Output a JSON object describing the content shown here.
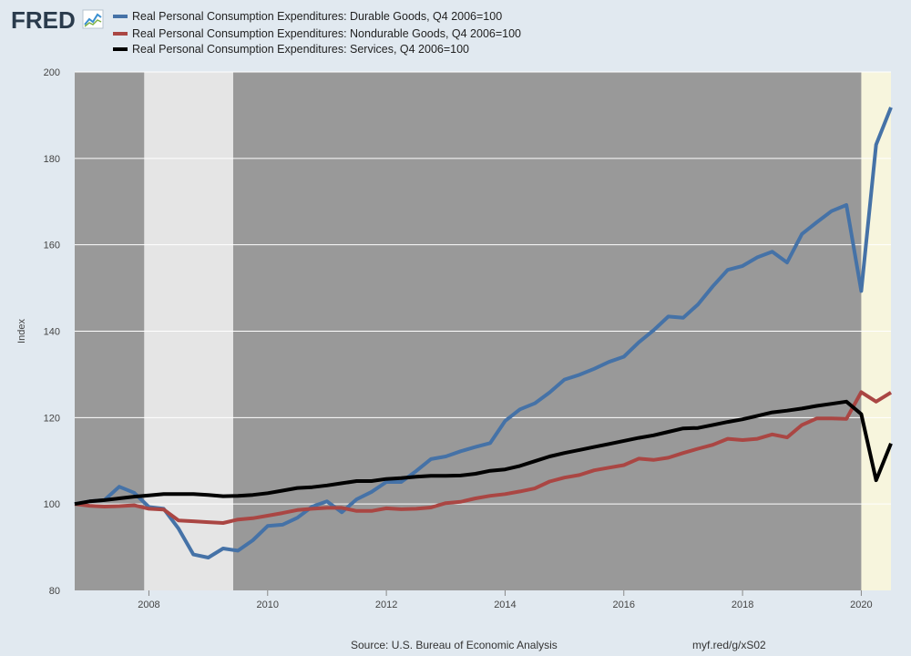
{
  "header": {
    "logo_text": "FRED",
    "logo_icon": "line-chart-icon"
  },
  "legend": [
    {
      "label": "Real Personal Consumption Expenditures: Durable Goods, Q4 2006=100",
      "color": "#4572a7"
    },
    {
      "label": "Real Personal Consumption Expenditures: Nondurable Goods, Q4 2006=100",
      "color": "#aa4643"
    },
    {
      "label": "Real Personal Consumption Expenditures: Services, Q4 2006=100",
      "color": "#000000"
    }
  ],
  "footer": {
    "source": "Source: U.S. Bureau of Economic Analysis",
    "link": "myf.red/g/xS02"
  },
  "colors": {
    "page_background": "#e1e9f0",
    "plot_background": "#999999",
    "recession_2008": "#e5e5e5",
    "recession_2020": "#f7f5dd",
    "gridline": "#ffffff"
  },
  "chart_data": {
    "type": "line",
    "ylabel": "Index",
    "xlabel": "",
    "xlim": [
      2006.75,
      2020.5
    ],
    "ylim": [
      80,
      200
    ],
    "yticks": [
      80,
      100,
      120,
      140,
      160,
      180,
      200
    ],
    "xticks": [
      2008,
      2010,
      2012,
      2014,
      2016,
      2018,
      2020
    ],
    "grid": true,
    "legend_position": "top-left",
    "recession_bands": [
      {
        "start": 2007.92,
        "end": 2009.42,
        "style": "light-gray"
      },
      {
        "start": 2020.0,
        "end": 2020.5,
        "style": "light-yellow"
      }
    ],
    "x": [
      2006.75,
      2007.0,
      2007.25,
      2007.5,
      2007.75,
      2008.0,
      2008.25,
      2008.5,
      2008.75,
      2009.0,
      2009.25,
      2009.5,
      2009.75,
      2010.0,
      2010.25,
      2010.5,
      2010.75,
      2011.0,
      2011.25,
      2011.5,
      2011.75,
      2012.0,
      2012.25,
      2012.5,
      2012.75,
      2013.0,
      2013.25,
      2013.5,
      2013.75,
      2014.0,
      2014.25,
      2014.5,
      2014.75,
      2015.0,
      2015.25,
      2015.5,
      2015.75,
      2016.0,
      2016.25,
      2016.5,
      2016.75,
      2017.0,
      2017.25,
      2017.5,
      2017.75,
      2018.0,
      2018.25,
      2018.5,
      2018.75,
      2019.0,
      2019.25,
      2019.5,
      2019.75,
      2020.0,
      2020.25,
      2020.5
    ],
    "series": [
      {
        "name": "Real Personal Consumption Expenditures: Durable Goods, Q4 2006=100",
        "color": "#4572a7",
        "values": [
          100.0,
          100.6,
          100.9,
          104.0,
          102.6,
          99.3,
          98.9,
          94.3,
          88.3,
          87.6,
          89.7,
          89.2,
          91.6,
          94.9,
          95.2,
          96.8,
          99.4,
          100.6,
          98.1,
          101.1,
          102.8,
          105.1,
          105.1,
          107.6,
          110.4,
          111.0,
          112.2,
          113.2,
          114.1,
          119.2,
          121.9,
          123.3,
          125.8,
          128.8,
          129.9,
          131.3,
          132.9,
          134.1,
          137.4,
          140.2,
          143.4,
          143.1,
          146.2,
          150.4,
          154.2,
          155.1,
          157.1,
          158.4,
          155.9,
          162.5,
          165.2,
          167.8,
          169.2,
          149.3,
          183.2,
          191.8
        ]
      },
      {
        "name": "Real Personal Consumption Expenditures: Nondurable Goods, Q4 2006=100",
        "color": "#aa4643",
        "values": [
          100.0,
          99.6,
          99.4,
          99.5,
          99.7,
          98.9,
          98.7,
          96.2,
          96.0,
          95.8,
          95.6,
          96.4,
          96.7,
          97.3,
          97.9,
          98.6,
          98.9,
          99.1,
          99.1,
          98.4,
          98.4,
          99.0,
          98.8,
          98.9,
          99.2,
          100.2,
          100.5,
          101.3,
          101.9,
          102.3,
          102.9,
          103.6,
          105.2,
          106.1,
          106.7,
          107.8,
          108.4,
          109.0,
          110.5,
          110.2,
          110.7,
          111.8,
          112.8,
          113.7,
          115.1,
          114.8,
          115.1,
          116.1,
          115.4,
          118.3,
          119.8,
          119.8,
          119.7,
          125.9,
          123.7,
          125.8
        ]
      },
      {
        "name": "Real Personal Consumption Expenditures: Services, Q4 2006=100",
        "color": "#000000",
        "values": [
          100.0,
          100.6,
          100.9,
          101.3,
          101.7,
          102.0,
          102.3,
          102.3,
          102.3,
          102.1,
          101.8,
          101.9,
          102.1,
          102.5,
          103.1,
          103.7,
          103.9,
          104.3,
          104.8,
          105.3,
          105.3,
          105.8,
          106.0,
          106.3,
          106.5,
          106.5,
          106.6,
          107.0,
          107.7,
          108.0,
          108.8,
          109.9,
          111.0,
          111.8,
          112.5,
          113.2,
          113.9,
          114.6,
          115.3,
          115.9,
          116.7,
          117.5,
          117.6,
          118.3,
          119.0,
          119.6,
          120.4,
          121.2,
          121.6,
          122.1,
          122.7,
          123.2,
          123.7,
          120.8,
          105.5,
          114.0
        ]
      }
    ]
  }
}
